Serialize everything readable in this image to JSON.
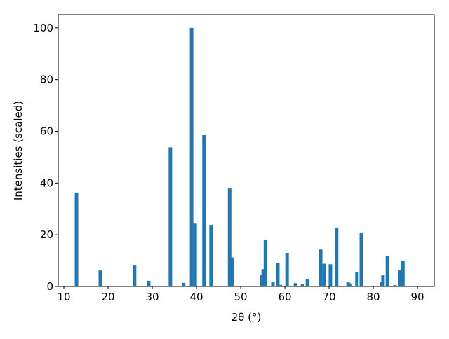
{
  "chart_data": {
    "type": "bar",
    "x_label": "2θ (°)",
    "y_label": "Intensities (scaled)",
    "x": [
      12.86,
      18.25,
      26.0,
      29.2,
      34.1,
      37.1,
      38.9,
      39.7,
      41.7,
      43.3,
      47.5,
      48.1,
      54.8,
      55.1,
      55.6,
      57.3,
      58.4,
      59.0,
      60.5,
      62.4,
      64.0,
      65.1,
      68.1,
      68.9,
      70.3,
      71.7,
      74.3,
      74.8,
      76.3,
      77.3,
      81.9,
      82.2,
      83.2,
      84.9,
      86.0,
      86.7
    ],
    "values": [
      36.3,
      6.2,
      8.1,
      2.2,
      53.8,
      1.4,
      100,
      24.3,
      58.5,
      23.8,
      37.9,
      11.2,
      4.6,
      6.7,
      18.1,
      1.6,
      9.0,
      0.6,
      13.0,
      1.3,
      0.8,
      2.9,
      14.3,
      8.8,
      8.6,
      22.8,
      1.6,
      1.2,
      5.5,
      20.9,
      1.7,
      4.3,
      11.9,
      0.5,
      6.2,
      10.0
    ],
    "color": "#1f77b4",
    "xlim": [
      8.73,
      93.8
    ],
    "xticks": [
      10,
      20,
      30,
      40,
      50,
      60,
      70,
      80,
      90
    ],
    "ylim": [
      0,
      105.1
    ],
    "yticks": [
      0,
      20,
      40,
      60,
      80,
      100
    ],
    "grid": false
  }
}
